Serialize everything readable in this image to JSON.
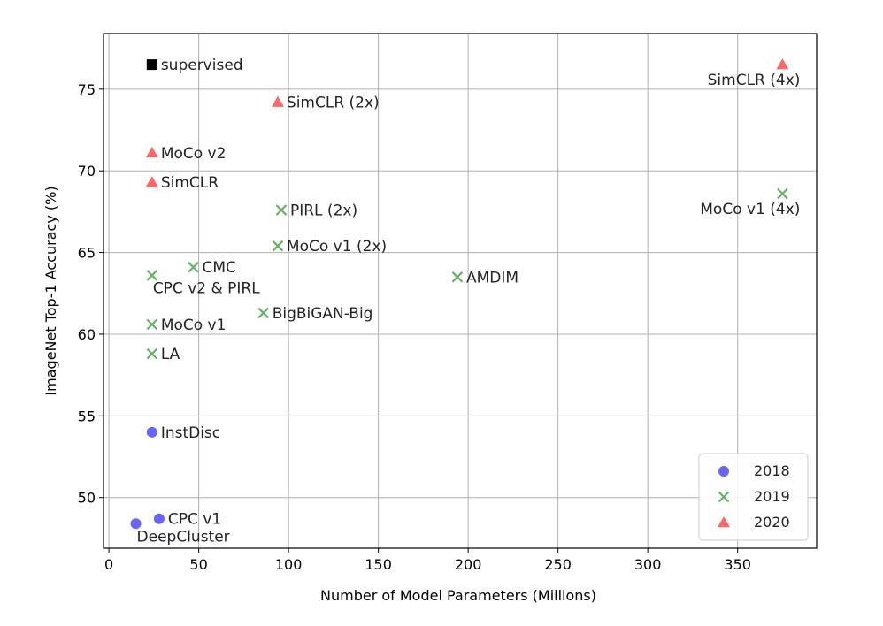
{
  "chart_data": {
    "type": "scatter",
    "title": "",
    "xlabel": "Number of Model Parameters (Millions)",
    "ylabel": "ImageNet Top-1 Accuracy (%)",
    "xlim": [
      -3,
      394
    ],
    "ylim": [
      46.9,
      78.4
    ],
    "xticks": [
      0,
      50,
      100,
      150,
      200,
      250,
      300,
      350
    ],
    "yticks": [
      50,
      55,
      60,
      65,
      70,
      75
    ],
    "grid": true,
    "legend_position": "bottom-right",
    "colors": {
      "2018": "#0000ff",
      "2019": "#008000",
      "2020": "#ff0000",
      "supervised": "#000000"
    },
    "legend": [
      {
        "name": "2018",
        "marker": "circle"
      },
      {
        "name": "2019",
        "marker": "x"
      },
      {
        "name": "2020",
        "marker": "triangle"
      }
    ],
    "points": [
      {
        "label": "supervised",
        "x": 24,
        "y": 76.5,
        "group": "supervised",
        "marker": "square",
        "anchor": "right"
      },
      {
        "label": "SimCLR (2x)",
        "x": 94,
        "y": 74.2,
        "group": "2020",
        "marker": "triangle",
        "anchor": "right"
      },
      {
        "label": "MoCo v2",
        "x": 24,
        "y": 71.1,
        "group": "2020",
        "marker": "triangle",
        "anchor": "right"
      },
      {
        "label": "SimCLR",
        "x": 24,
        "y": 69.3,
        "group": "2020",
        "marker": "triangle",
        "anchor": "right"
      },
      {
        "label": "SimCLR (4x)",
        "x": 375,
        "y": 76.5,
        "group": "2020",
        "marker": "triangle",
        "anchor": "below-left"
      },
      {
        "label": "PIRL (2x)",
        "x": 96,
        "y": 67.6,
        "group": "2019",
        "marker": "x",
        "anchor": "right"
      },
      {
        "label": "MoCo v1 (2x)",
        "x": 94,
        "y": 65.4,
        "group": "2019",
        "marker": "x",
        "anchor": "right"
      },
      {
        "label": "MoCo v1 (4x)",
        "x": 375,
        "y": 68.6,
        "group": "2019",
        "marker": "x",
        "anchor": "below-left"
      },
      {
        "label": "CMC",
        "x": 47,
        "y": 64.1,
        "group": "2019",
        "marker": "x",
        "anchor": "right"
      },
      {
        "label": "CPC v2 & PIRL",
        "x": 24,
        "y": 63.6,
        "group": "2019",
        "marker": "x",
        "anchor": "below-right"
      },
      {
        "label": "AMDIM",
        "x": 194,
        "y": 63.5,
        "group": "2019",
        "marker": "x",
        "anchor": "right"
      },
      {
        "label": "BigBiGAN-Big",
        "x": 86,
        "y": 61.3,
        "group": "2019",
        "marker": "x",
        "anchor": "right"
      },
      {
        "label": "MoCo v1",
        "x": 24,
        "y": 60.6,
        "group": "2019",
        "marker": "x",
        "anchor": "right"
      },
      {
        "label": "LA",
        "x": 24,
        "y": 58.8,
        "group": "2019",
        "marker": "x",
        "anchor": "right"
      },
      {
        "label": "InstDisc",
        "x": 24,
        "y": 54.0,
        "group": "2018",
        "marker": "circle",
        "anchor": "right"
      },
      {
        "label": "CPC v1",
        "x": 28,
        "y": 48.7,
        "group": "2018",
        "marker": "circle",
        "anchor": "right"
      },
      {
        "label": "DeepCluster",
        "x": 15,
        "y": 48.4,
        "group": "2018",
        "marker": "circle",
        "anchor": "below-right"
      }
    ]
  }
}
